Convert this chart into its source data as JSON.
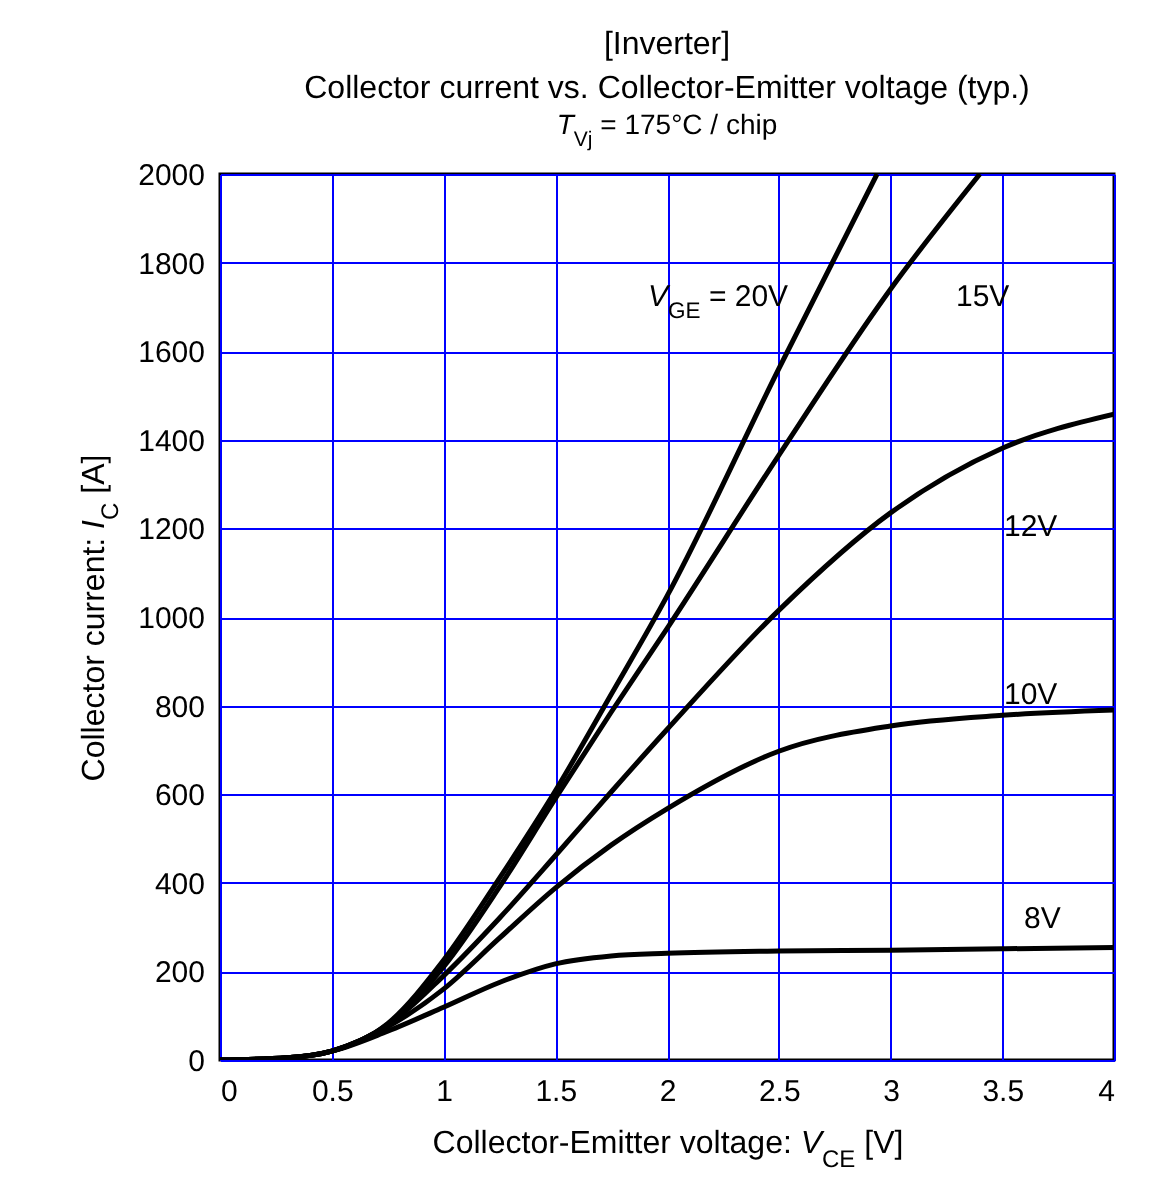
{
  "chart_data": {
    "type": "line",
    "title": "[Inverter]",
    "subtitle": "Collector current vs. Collector-Emitter voltage (typ.)",
    "annotations": [
      "T$_{Vj}$ = 175°C / chip"
    ],
    "xlabel": "Collector-Emitter voltage: V$_{CE}$ [V]",
    "ylabel": "Collector current: I$_{C}$ [A]",
    "xlim": [
      0,
      4
    ],
    "xticks": [
      0,
      0.5,
      1,
      1.5,
      2,
      2.5,
      3,
      3.5,
      4
    ],
    "ylim": [
      0,
      2000
    ],
    "yticks": [
      0,
      200,
      400,
      600,
      800,
      1000,
      1200,
      1400,
      1600,
      1800,
      2000
    ],
    "grid": true,
    "legend": false,
    "marker": "none",
    "line_style": "solid",
    "series": [
      {
        "name": "V$_{GE}$ = 20V",
        "color": "#000000",
        "x": [
          0,
          0.3,
          0.5,
          0.75,
          1,
          1.25,
          1.5,
          1.75,
          2,
          2.5,
          2.94
        ],
        "values": [
          0,
          5,
          20,
          82,
          225,
          410,
          607,
          825,
          1047,
          1560,
          2000
        ]
      },
      {
        "name": "15V",
        "color": "#000000",
        "x": [
          0,
          0.3,
          0.5,
          0.75,
          1,
          1.25,
          1.5,
          1.75,
          2,
          2.5,
          3,
          3.4
        ],
        "values": [
          0,
          5,
          20,
          80,
          210,
          390,
          590,
          785,
          974,
          1365,
          1740,
          2000
        ]
      },
      {
        "name": "12V",
        "color": "#000000",
        "x": [
          0,
          0.3,
          0.5,
          0.75,
          1,
          1.25,
          1.5,
          1.75,
          2,
          2.5,
          3,
          3.5,
          4
        ],
        "values": [
          0,
          5,
          20,
          78,
          190,
          320,
          461,
          605,
          746,
          1015,
          1235,
          1381,
          1458
        ]
      },
      {
        "name": "10V",
        "color": "#000000",
        "x": [
          0,
          0.3,
          0.5,
          0.75,
          1,
          1.25,
          1.5,
          1.75,
          2,
          2.5,
          3,
          3.5,
          4
        ],
        "values": [
          0,
          5,
          20,
          75,
          160,
          275,
          388,
          485,
          567,
          697,
          754,
          778,
          790
        ]
      },
      {
        "name": "8V",
        "color": "#000000",
        "x": [
          0,
          0.3,
          0.5,
          0.75,
          1,
          1.25,
          1.5,
          1.75,
          2,
          2.5,
          3,
          3.5,
          4
        ],
        "values": [
          0,
          5,
          20,
          65,
          119,
          175,
          217,
          235,
          241,
          246,
          248,
          251,
          254
        ]
      }
    ]
  }
}
